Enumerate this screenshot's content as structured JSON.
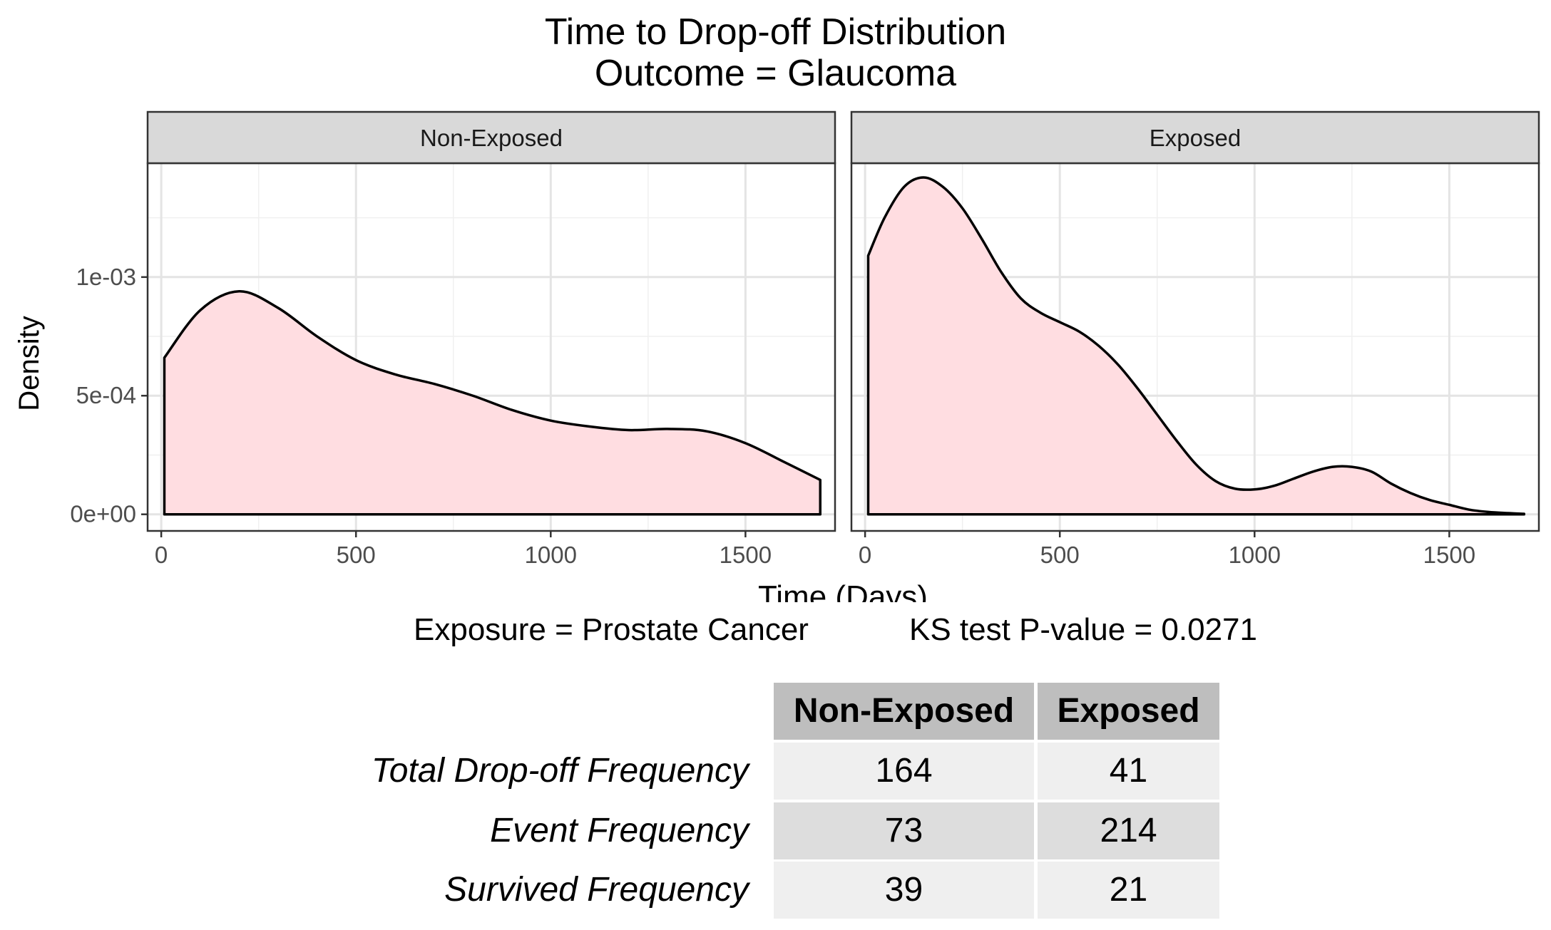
{
  "title": {
    "line1": "Time to Drop-off Distribution",
    "line2": "Outcome = Glaucoma"
  },
  "chart_data": {
    "type": "area",
    "subtype": "density",
    "title": "Time to Drop-off Distribution\nOutcome = Glaucoma",
    "xlabel": "Time (Days)",
    "ylabel": "Density",
    "xlim": [
      -35,
      1730
    ],
    "ylim": [
      -7e-05,
      0.00148
    ],
    "x_ticks": [
      0,
      500,
      1000,
      1500
    ],
    "x_tick_labels": [
      "0",
      "500",
      "1000",
      "1500"
    ],
    "y_ticks": [
      0,
      0.0005,
      0.001
    ],
    "y_tick_labels": [
      "0e+00",
      "5e-04",
      "1e-03"
    ],
    "grid": true,
    "fill_color": "#ffdde1",
    "line_color": "#000000",
    "panels": [
      {
        "name": "Non-Exposed",
        "x": [
          8,
          100,
          200,
          300,
          400,
          500,
          600,
          700,
          800,
          900,
          1000,
          1100,
          1200,
          1300,
          1400,
          1500,
          1600,
          1692
        ],
        "y": [
          0.00066,
          0.00086,
          0.00094,
          0.00087,
          0.00075,
          0.00065,
          0.00059,
          0.00055,
          0.0005,
          0.00044,
          0.000395,
          0.00037,
          0.000355,
          0.00036,
          0.00035,
          0.0003,
          0.00022,
          0.000145
        ]
      },
      {
        "name": "Exposed",
        "x": [
          8,
          50,
          100,
          150,
          200,
          250,
          300,
          350,
          400,
          450,
          500,
          550,
          600,
          650,
          700,
          750,
          800,
          850,
          900,
          950,
          1000,
          1050,
          1100,
          1150,
          1200,
          1250,
          1300,
          1350,
          1400,
          1450,
          1500,
          1550,
          1600,
          1650,
          1692
        ],
        "y": [
          0.00109,
          0.00125,
          0.00138,
          0.00142,
          0.00138,
          0.00129,
          0.00116,
          0.00102,
          0.00091,
          0.00085,
          0.00081,
          0.00077,
          0.00071,
          0.00063,
          0.00053,
          0.00042,
          0.00031,
          0.00021,
          0.00014,
          0.000108,
          0.000105,
          0.00012,
          0.00015,
          0.00018,
          0.0002,
          0.0002,
          0.00018,
          0.00013,
          9e-05,
          6e-05,
          4e-05,
          2e-05,
          1e-05,
          5e-06,
          2e-06
        ]
      }
    ]
  },
  "caption": {
    "exposure": "Exposure = Prostate Cancer",
    "ks": "KS test P-value = 0.0271"
  },
  "table": {
    "headers": [
      "Non-Exposed",
      "Exposed"
    ],
    "rows": [
      {
        "label": "Total Drop-off Frequency",
        "values": [
          "164",
          "41"
        ]
      },
      {
        "label": "Event Frequency",
        "values": [
          "73",
          "214"
        ]
      },
      {
        "label": "Survived Frequency",
        "values": [
          "39",
          "21"
        ]
      }
    ]
  }
}
